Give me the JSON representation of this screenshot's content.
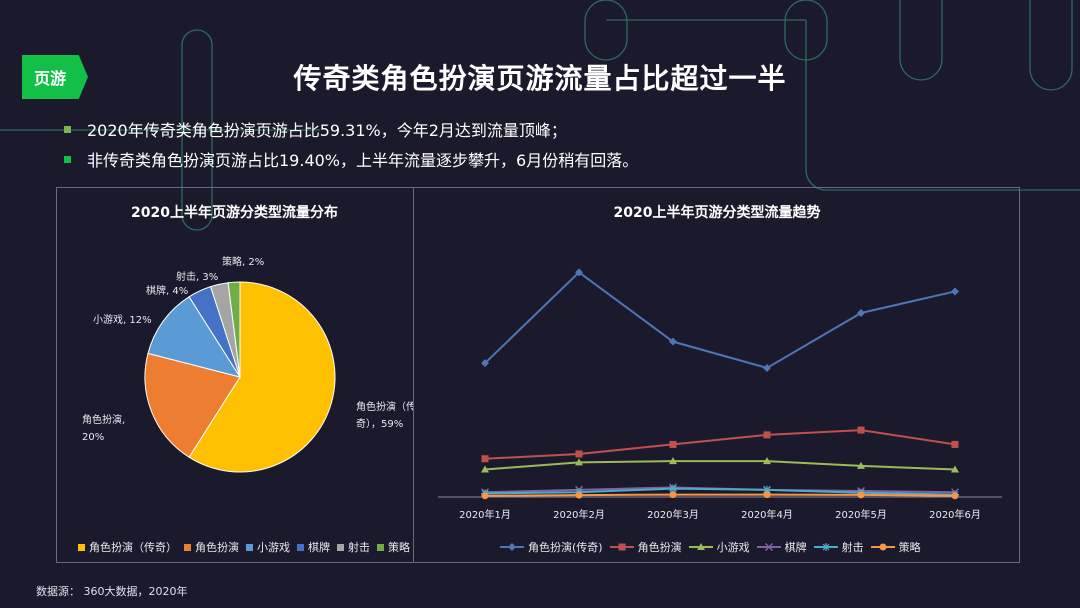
{
  "tag": "页游",
  "title": "传奇类角色扮演页游流量占比超过一半",
  "bullets": [
    {
      "text": "2020年传奇类角色扮演页游占比59.31%，今年2月达到流量顶峰；",
      "color": "#7fb24a"
    },
    {
      "text": "非传奇类角色扮演页游占比19.40%，上半年流量逐步攀升，6月份稍有回落。",
      "color": "#12c048"
    }
  ],
  "source": "数据源： 360大数据，2020年",
  "chart_data": [
    {
      "type": "pie",
      "title": "2020上半年页游分类型流量分布",
      "slices": [
        {
          "name": "角色扮演（传奇）",
          "value": 59,
          "color": "#ffc000",
          "label_lines": [
            "角色扮演（传",
            "奇），59%"
          ]
        },
        {
          "name": "角色扮演",
          "value": 20,
          "color": "#ed7d31",
          "label_lines": [
            "角色扮演,",
            "20%"
          ]
        },
        {
          "name": "小游戏",
          "value": 12,
          "color": "#5b9bd5",
          "label_lines": [
            "小游戏, 12%"
          ]
        },
        {
          "name": "棋牌",
          "value": 4,
          "color": "#4472c4",
          "label_lines": [
            "棋牌, 4%"
          ]
        },
        {
          "name": "射击",
          "value": 3,
          "color": "#a5a5a5",
          "label_lines": [
            "射击, 3%"
          ]
        },
        {
          "name": "策略",
          "value": 2,
          "color": "#70ad47",
          "label_lines": [
            "策略, 2%"
          ]
        }
      ],
      "legend": "bottom"
    },
    {
      "type": "line",
      "title": "2020上半年页游分类型流量趋势",
      "categories": [
        "2020年1月",
        "2020年2月",
        "2020年3月",
        "2020年4月",
        "2020年5月",
        "2020年6月"
      ],
      "ylim": [
        0,
        100
      ],
      "series": [
        {
          "name": "角色扮演(传奇)",
          "color": "#4f75b4",
          "marker": "diamond",
          "values": [
            56,
            94,
            65,
            54,
            77,
            86
          ]
        },
        {
          "name": "角色扮演",
          "color": "#c0504d",
          "marker": "square",
          "values": [
            16,
            18,
            22,
            26,
            28,
            22
          ]
        },
        {
          "name": "小游戏",
          "color": "#9bbb59",
          "marker": "triangle",
          "values": [
            11.5,
            14.5,
            15,
            15,
            13,
            11.5
          ]
        },
        {
          "name": "棋牌",
          "color": "#8064a2",
          "marker": "x",
          "values": [
            2,
            3,
            4,
            3,
            2.5,
            2
          ]
        },
        {
          "name": "射击",
          "color": "#4bacc6",
          "marker": "star",
          "values": [
            1.5,
            2,
            3.5,
            3,
            1.8,
            1
          ]
        },
        {
          "name": "策略",
          "color": "#f79646",
          "marker": "circle",
          "values": [
            0.5,
            0.8,
            1,
            1,
            0.9,
            0.5
          ]
        }
      ],
      "legend": "bottom",
      "grid": false
    }
  ]
}
